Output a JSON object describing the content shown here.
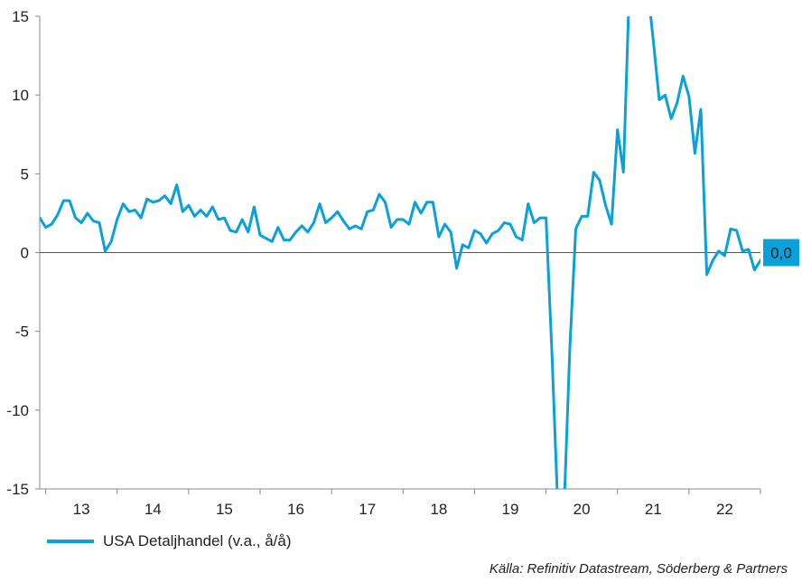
{
  "chart_data": {
    "type": "line",
    "ylim": [
      -15,
      15
    ],
    "yticks": [
      15,
      10,
      5,
      0,
      -5,
      -10,
      -15
    ],
    "ytick_labels": [
      "15",
      "10",
      "5",
      "0",
      "-5",
      "-10",
      "-15"
    ],
    "xlim": [
      2012.917,
      2023.0
    ],
    "x_ticks": [
      2013,
      2014,
      2015,
      2016,
      2017,
      2018,
      2019,
      2020,
      2021,
      2022,
      2023
    ],
    "x_category_labels": [
      {
        "label": "13",
        "start": 2013,
        "end": 2014
      },
      {
        "label": "14",
        "start": 2014,
        "end": 2015
      },
      {
        "label": "15",
        "start": 2015,
        "end": 2016
      },
      {
        "label": "16",
        "start": 2016,
        "end": 2017
      },
      {
        "label": "17",
        "start": 2017,
        "end": 2018
      },
      {
        "label": "18",
        "start": 2018,
        "end": 2019
      },
      {
        "label": "19",
        "start": 2019,
        "end": 2020
      },
      {
        "label": "20",
        "start": 2020,
        "end": 2021
      },
      {
        "label": "21",
        "start": 2021,
        "end": 2022
      },
      {
        "label": "22",
        "start": 2022,
        "end": 2023
      }
    ],
    "zero_line": true,
    "grid": false,
    "series": [
      {
        "name": "USA Detaljhandel (v.a., å/å)",
        "color": "#0aa0dc",
        "x_start": 2012.917,
        "x_step": 0.08333,
        "values": [
          2.2,
          1.6,
          1.8,
          2.4,
          3.3,
          3.3,
          2.2,
          1.9,
          2.5,
          2.0,
          1.9,
          0.1,
          0.7,
          2.1,
          3.1,
          2.6,
          2.7,
          2.2,
          3.4,
          3.2,
          3.3,
          3.6,
          3.1,
          4.3,
          2.6,
          3.0,
          2.3,
          2.7,
          2.3,
          2.9,
          2.1,
          2.2,
          1.4,
          1.3,
          2.1,
          1.3,
          2.9,
          1.1,
          0.9,
          0.7,
          1.6,
          0.8,
          0.8,
          1.3,
          1.7,
          1.3,
          1.9,
          3.1,
          1.9,
          2.2,
          2.6,
          2.0,
          1.5,
          1.7,
          1.5,
          2.6,
          2.7,
          3.7,
          3.2,
          1.6,
          2.1,
          2.1,
          1.8,
          3.2,
          2.5,
          3.2,
          3.2,
          1.0,
          1.8,
          1.3,
          -1.0,
          0.5,
          0.3,
          1.4,
          1.2,
          0.6,
          1.2,
          1.4,
          1.9,
          1.8,
          1.0,
          0.8,
          3.1,
          1.9,
          2.2,
          2.2,
          -6.5,
          -16.5,
          -16.5,
          -6.0,
          1.5,
          2.3,
          2.3,
          5.1,
          4.6,
          3.0,
          1.8,
          7.8,
          5.1,
          17.0,
          17.0,
          17.0,
          17.0,
          13.5,
          9.7,
          10.0,
          8.5,
          9.5,
          11.2,
          9.9,
          6.3,
          9.1,
          -1.4,
          -0.5,
          0.1,
          -0.2,
          1.5,
          1.4,
          0.1,
          0.2,
          -1.1,
          -0.5,
          0.0
        ]
      }
    ],
    "end_value_label": "0,0",
    "legend": "bottom-left"
  },
  "legend": {
    "label": "USA Detaljhandel (v.a., å/å)"
  },
  "source": "Källa: Refinitiv Datastream, Söderberg & Partners"
}
